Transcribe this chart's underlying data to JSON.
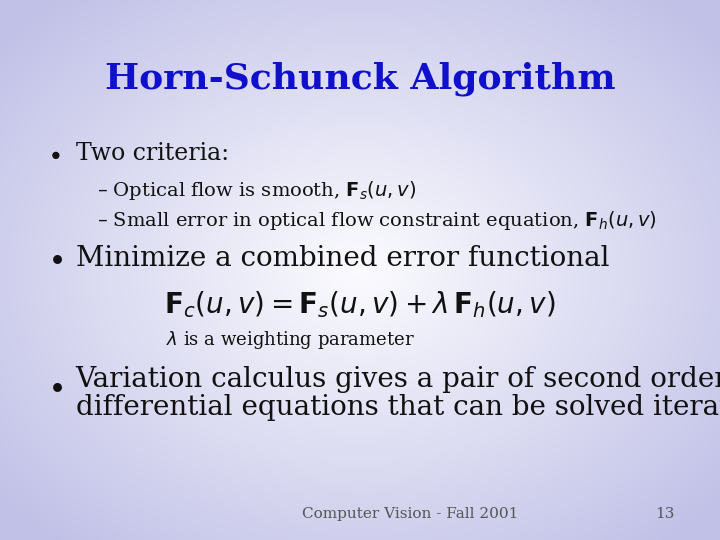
{
  "title": "Horn-Schunck Algorithm",
  "title_color": "#1010CC",
  "title_fontsize": 26,
  "bullet1": "Two criteria:",
  "bullet1_fontsize": 17,
  "sub1a": "– Optical flow is smooth, $\\mathbf{F}_s(u,v)$",
  "sub1b": "– Small error in optical flow constraint equation, $\\mathbf{F}_h(u,v)$",
  "sub_fontsize": 14,
  "bullet2": "Minimize a combined error functional",
  "bullet2_fontsize": 20,
  "formula": "$\\mathbf{F}_c(u,v) = \\mathbf{F}_s(u,v) + \\lambda\\, \\mathbf{F}_h(u,v)$",
  "formula_fontsize": 20,
  "lambda_note": "$\\lambda$ is a weighting parameter",
  "lambda_fontsize": 13,
  "bullet3_line1": "Variation calculus gives a pair of second order",
  "bullet3_line2": "differential equations that can be solved iteratively",
  "bullet3_fontsize": 20,
  "footer": "Computer Vision - Fall 2001",
  "page_num": "13",
  "footer_fontsize": 11,
  "text_color": "#111111"
}
